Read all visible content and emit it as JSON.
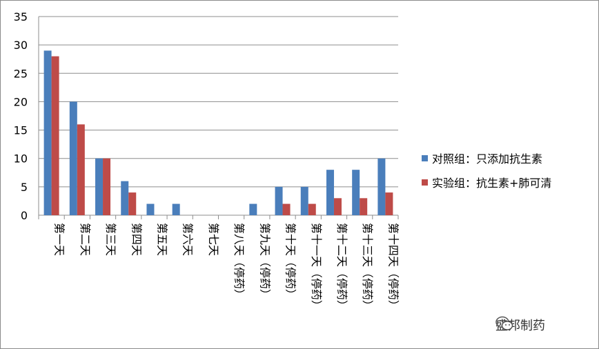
{
  "chart_data": {
    "type": "bar",
    "categories": [
      "第一天",
      "第二天",
      "第三天",
      "第四天",
      "第五天",
      "第六天",
      "第七天",
      "第八天（停药）",
      "第九天（停药）",
      "第十天（停药）",
      "第十一天（停药）",
      "第十二天（停药）",
      "第十三天（停药）",
      "第十四天（停药）"
    ],
    "series": [
      {
        "name": "对照组：只添加抗生素",
        "color": "#4a7ebb",
        "values": [
          29,
          20,
          10,
          6,
          2,
          2,
          0,
          0,
          2,
          5,
          5,
          8,
          8,
          10
        ]
      },
      {
        "name": "实验组：抗生素+肺可清",
        "color": "#be4b48",
        "values": [
          28,
          16,
          10,
          4,
          0,
          0,
          0,
          0,
          0,
          2,
          2,
          3,
          3,
          4
        ]
      }
    ],
    "ylim": [
      0,
      35
    ],
    "yticks": [
      0,
      5,
      10,
      15,
      20,
      25,
      30,
      35
    ],
    "grid": true,
    "legend": "right"
  },
  "watermark": {
    "text": "盛邦制药",
    "icon": "wechat-icon"
  }
}
